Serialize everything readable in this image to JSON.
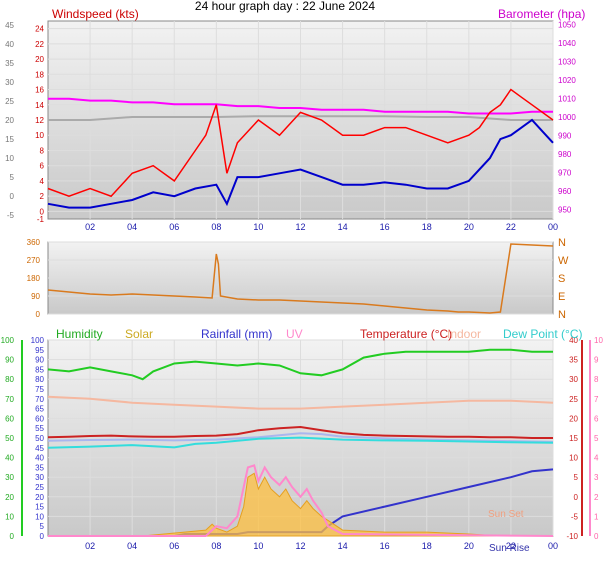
{
  "title": "24 hour graph day : 22 June 2024",
  "chart_data": [
    {
      "id": "wind_baro",
      "type": "line",
      "x_unit": "hour of day",
      "xlim": [
        0,
        24
      ],
      "xticks": [
        "02",
        "04",
        "06",
        "08",
        "10",
        "12",
        "14",
        "16",
        "18",
        "20",
        "22",
        "00"
      ],
      "left_axis": {
        "label": "Windspeed (kts)",
        "ticks": [
          -1,
          0,
          2,
          4,
          6,
          8,
          10,
          12,
          14,
          16,
          18,
          20,
          22,
          24
        ],
        "ylim": [
          -1,
          25
        ]
      },
      "left_outer_axis": {
        "ticks": [
          -5,
          0,
          5,
          10,
          15,
          20,
          25,
          30,
          35,
          40,
          45
        ]
      },
      "right_axis": {
        "label": "Barometer (hpa)",
        "ticks": [
          950,
          960,
          970,
          980,
          990,
          1000,
          1010,
          1020,
          1030,
          1040,
          1050
        ],
        "ylim": [
          945,
          1052
        ]
      },
      "series": [
        {
          "name": "Barometer (hpa)",
          "axis": "right",
          "color": "#ff00ff",
          "x": [
            0,
            1,
            2,
            3,
            4,
            5,
            6,
            7,
            8,
            9,
            10,
            11,
            12,
            13,
            14,
            15,
            16,
            17,
            18,
            19,
            20,
            21,
            22,
            23,
            24
          ],
          "y": [
            1010,
            1010,
            1009,
            1009,
            1008,
            1008,
            1007,
            1007,
            1007,
            1006,
            1006,
            1005,
            1005,
            1004,
            1004,
            1004,
            1003,
            1003,
            1003,
            1003,
            1002,
            1002,
            1002,
            1003,
            1003
          ]
        },
        {
          "name": "",
          "axis": "left",
          "color": "#aaaaaa",
          "x": [
            0,
            2,
            4,
            6,
            8,
            10,
            12,
            14,
            16,
            18,
            20,
            22,
            24
          ],
          "y": [
            12,
            12,
            12.4,
            12.4,
            12.4,
            12.5,
            12.5,
            12.5,
            12.5,
            12.4,
            12.4,
            12,
            12
          ]
        },
        {
          "name": "",
          "axis": "left",
          "color": "#ff0000",
          "x": [
            0,
            1,
            2,
            3,
            4,
            5,
            6,
            7,
            7.5,
            8,
            8.5,
            9,
            10,
            11,
            12,
            13,
            14,
            15,
            16,
            17,
            18,
            19,
            20,
            20.5,
            21,
            21.5,
            22,
            22.5,
            23,
            24
          ],
          "y": [
            3,
            2,
            3,
            2,
            5,
            6,
            4,
            8,
            10,
            14,
            5,
            9,
            12,
            10,
            13,
            12,
            10,
            10,
            11,
            11,
            10,
            9,
            10,
            11,
            13,
            14,
            16,
            15,
            14,
            12
          ]
        },
        {
          "name": "",
          "axis": "left",
          "color": "#0000cc",
          "x": [
            0,
            1,
            2,
            3,
            4,
            5,
            6,
            7,
            8,
            8.5,
            9,
            10,
            11,
            12,
            13,
            14,
            15,
            16,
            17,
            18,
            19,
            20,
            21,
            21.5,
            22,
            23,
            23.5,
            24
          ],
          "y": [
            1,
            0.5,
            0.5,
            1,
            1.5,
            2.5,
            2,
            3,
            3.5,
            1,
            4.5,
            4.5,
            5,
            5.5,
            4.5,
            3.5,
            3.5,
            3.8,
            3.5,
            3,
            3,
            4,
            7,
            9.5,
            10,
            12,
            10.5,
            9
          ]
        }
      ]
    },
    {
      "id": "wind_direction",
      "type": "line",
      "xlim": [
        0,
        24
      ],
      "left_axis": {
        "ticks": [
          0,
          90,
          180,
          270,
          360
        ],
        "ylim": [
          0,
          360
        ]
      },
      "right_axis": {
        "ticks": [
          "N",
          "E",
          "S",
          "W",
          "N"
        ]
      },
      "series": [
        {
          "name": "",
          "axis": "left",
          "color": "#d97a1e",
          "x": [
            0,
            1,
            2,
            3,
            4,
            5,
            6,
            7,
            7.8,
            8,
            8.1,
            8.2,
            9,
            10,
            11,
            12,
            13,
            14,
            15,
            16,
            17,
            18,
            19,
            19.5,
            20,
            21,
            21.5,
            22,
            23,
            24
          ],
          "y": [
            120,
            110,
            100,
            95,
            100,
            95,
            90,
            85,
            80,
            300,
            250,
            90,
            75,
            70,
            70,
            65,
            60,
            55,
            50,
            40,
            30,
            20,
            15,
            10,
            10,
            5,
            10,
            350,
            345,
            340
          ]
        }
      ]
    },
    {
      "id": "temp_hum_rain",
      "type": "line",
      "xlim": [
        0,
        24
      ],
      "xticks": [
        "02",
        "04",
        "06",
        "08",
        "10",
        "12",
        "14",
        "16",
        "18",
        "20",
        "22",
        "00"
      ],
      "annotations": [
        "Sun Set",
        "Sun Rise"
      ],
      "legend": [
        "Humidity",
        "Solar",
        "Rainfall (mm)",
        "UV",
        "Temperature (°C)",
        "Indoor",
        "Dew Point (°C)"
      ],
      "axes": {
        "humidity": [
          0,
          10,
          20,
          30,
          40,
          50,
          60,
          70,
          80,
          90,
          100
        ],
        "rain": [
          0,
          5,
          10,
          15,
          20,
          25,
          30,
          35,
          40,
          45,
          50,
          55,
          60,
          65,
          70,
          75,
          80,
          85,
          90,
          95,
          100
        ],
        "temperature": [
          -10,
          -5,
          0,
          5,
          10,
          15,
          20,
          25,
          30,
          35,
          40
        ],
        "uv": [
          0,
          1,
          2,
          3,
          4,
          5,
          6,
          7,
          8,
          9,
          10
        ]
      },
      "series": [
        {
          "name": "Humidity",
          "axis": "humidity",
          "color": "#22cc22",
          "x": [
            0,
            1,
            2,
            3,
            4,
            4.5,
            5,
            6,
            7,
            8,
            9,
            10,
            11,
            12,
            13,
            14,
            15,
            16,
            17,
            18,
            19,
            20,
            21,
            22,
            23,
            24
          ],
          "y": [
            85,
            84,
            86,
            84,
            82,
            80,
            84,
            88,
            89,
            88,
            87,
            88,
            87,
            83,
            82,
            85,
            91,
            93,
            94,
            94,
            94,
            94,
            95,
            95,
            94,
            94
          ]
        },
        {
          "name": "Indoor",
          "axis": "rain",
          "color": "#f5b8a0",
          "x": [
            0,
            2,
            4,
            6,
            8,
            10,
            12,
            14,
            16,
            18,
            20,
            22,
            24
          ],
          "y": [
            71,
            70,
            68,
            67,
            66,
            65,
            65,
            66,
            67,
            68,
            69,
            69,
            68
          ]
        },
        {
          "name": "Temperature (°C)",
          "axis": "temperature",
          "color": "#cc2222",
          "x": [
            0,
            1,
            2,
            3,
            4,
            5,
            6,
            7,
            8,
            9,
            10,
            11,
            12,
            13,
            14,
            15,
            16,
            17,
            18,
            19,
            20,
            21,
            22,
            23,
            24
          ],
          "y": [
            15.2,
            15.3,
            15.5,
            15.6,
            15.4,
            15.3,
            15.3,
            15.5,
            15.6,
            16,
            17,
            17.5,
            17.8,
            17,
            16.2,
            15.8,
            15.6,
            15.5,
            15.4,
            15.3,
            15.3,
            15.2,
            15.2,
            15,
            15
          ]
        },
        {
          "name": "",
          "axis": "temperature",
          "color": "#aab6ee",
          "x": [
            0,
            2,
            4,
            6,
            8,
            10,
            12,
            13,
            14,
            16,
            18,
            20,
            22,
            24
          ],
          "y": [
            14.3,
            14.5,
            14.6,
            14.4,
            14.6,
            15.2,
            16.2,
            16,
            15.3,
            14.9,
            14.6,
            14.4,
            14.2,
            14
          ]
        },
        {
          "name": "Dew Point (°C)",
          "axis": "temperature",
          "color": "#33dddd",
          "x": [
            0,
            2,
            4,
            6,
            7,
            8,
            9,
            10,
            12,
            14,
            16,
            18,
            20,
            22,
            24
          ],
          "y": [
            12.5,
            12.8,
            13.2,
            12.6,
            13.5,
            13.8,
            14.3,
            14.8,
            15.1,
            14.6,
            14.4,
            14.3,
            14.1,
            13.9,
            13.8
          ]
        },
        {
          "name": "Rainfall (mm)",
          "axis": "rain",
          "color": "#3333cc",
          "x": [
            0,
            6,
            6.5,
            9,
            9.5,
            13,
            13.3,
            14,
            16,
            18,
            20,
            22,
            23,
            24
          ],
          "y": [
            0,
            0,
            1,
            1,
            2,
            2,
            5,
            10,
            15,
            20,
            25,
            30,
            33,
            34
          ]
        },
        {
          "name": "Solar",
          "axis": "rain",
          "color": "#ffc040",
          "x": [
            0,
            4.5,
            7.5,
            7.8,
            8,
            8.5,
            9,
            9.3,
            9.5,
            9.8,
            10,
            10.3,
            10.6,
            11,
            11.3,
            11.6,
            12,
            12.3,
            12.6,
            13,
            13.3,
            14,
            16,
            18,
            20,
            21.5,
            24
          ],
          "y": [
            0,
            0,
            3,
            6,
            4,
            2,
            5,
            15,
            30,
            32,
            24,
            30,
            24,
            20,
            24,
            18,
            14,
            18,
            14,
            10,
            8,
            3,
            2,
            2,
            1,
            0,
            0
          ]
        },
        {
          "name": "UV",
          "axis": "uv",
          "color": "#ff88cc",
          "x": [
            0,
            7.5,
            8,
            8.5,
            9,
            9.3,
            9.5,
            9.8,
            10,
            10.3,
            10.6,
            11,
            11.3,
            11.6,
            12,
            12.3,
            12.6,
            13,
            13.3,
            14,
            24
          ],
          "y": [
            0,
            0,
            0.5,
            0.4,
            1,
            2.5,
            3.5,
            3.6,
            2.8,
            3.5,
            3,
            2.6,
            3,
            2.5,
            2,
            2.4,
            1.8,
            1.2,
            0.5,
            0.1,
            0
          ]
        }
      ]
    }
  ]
}
